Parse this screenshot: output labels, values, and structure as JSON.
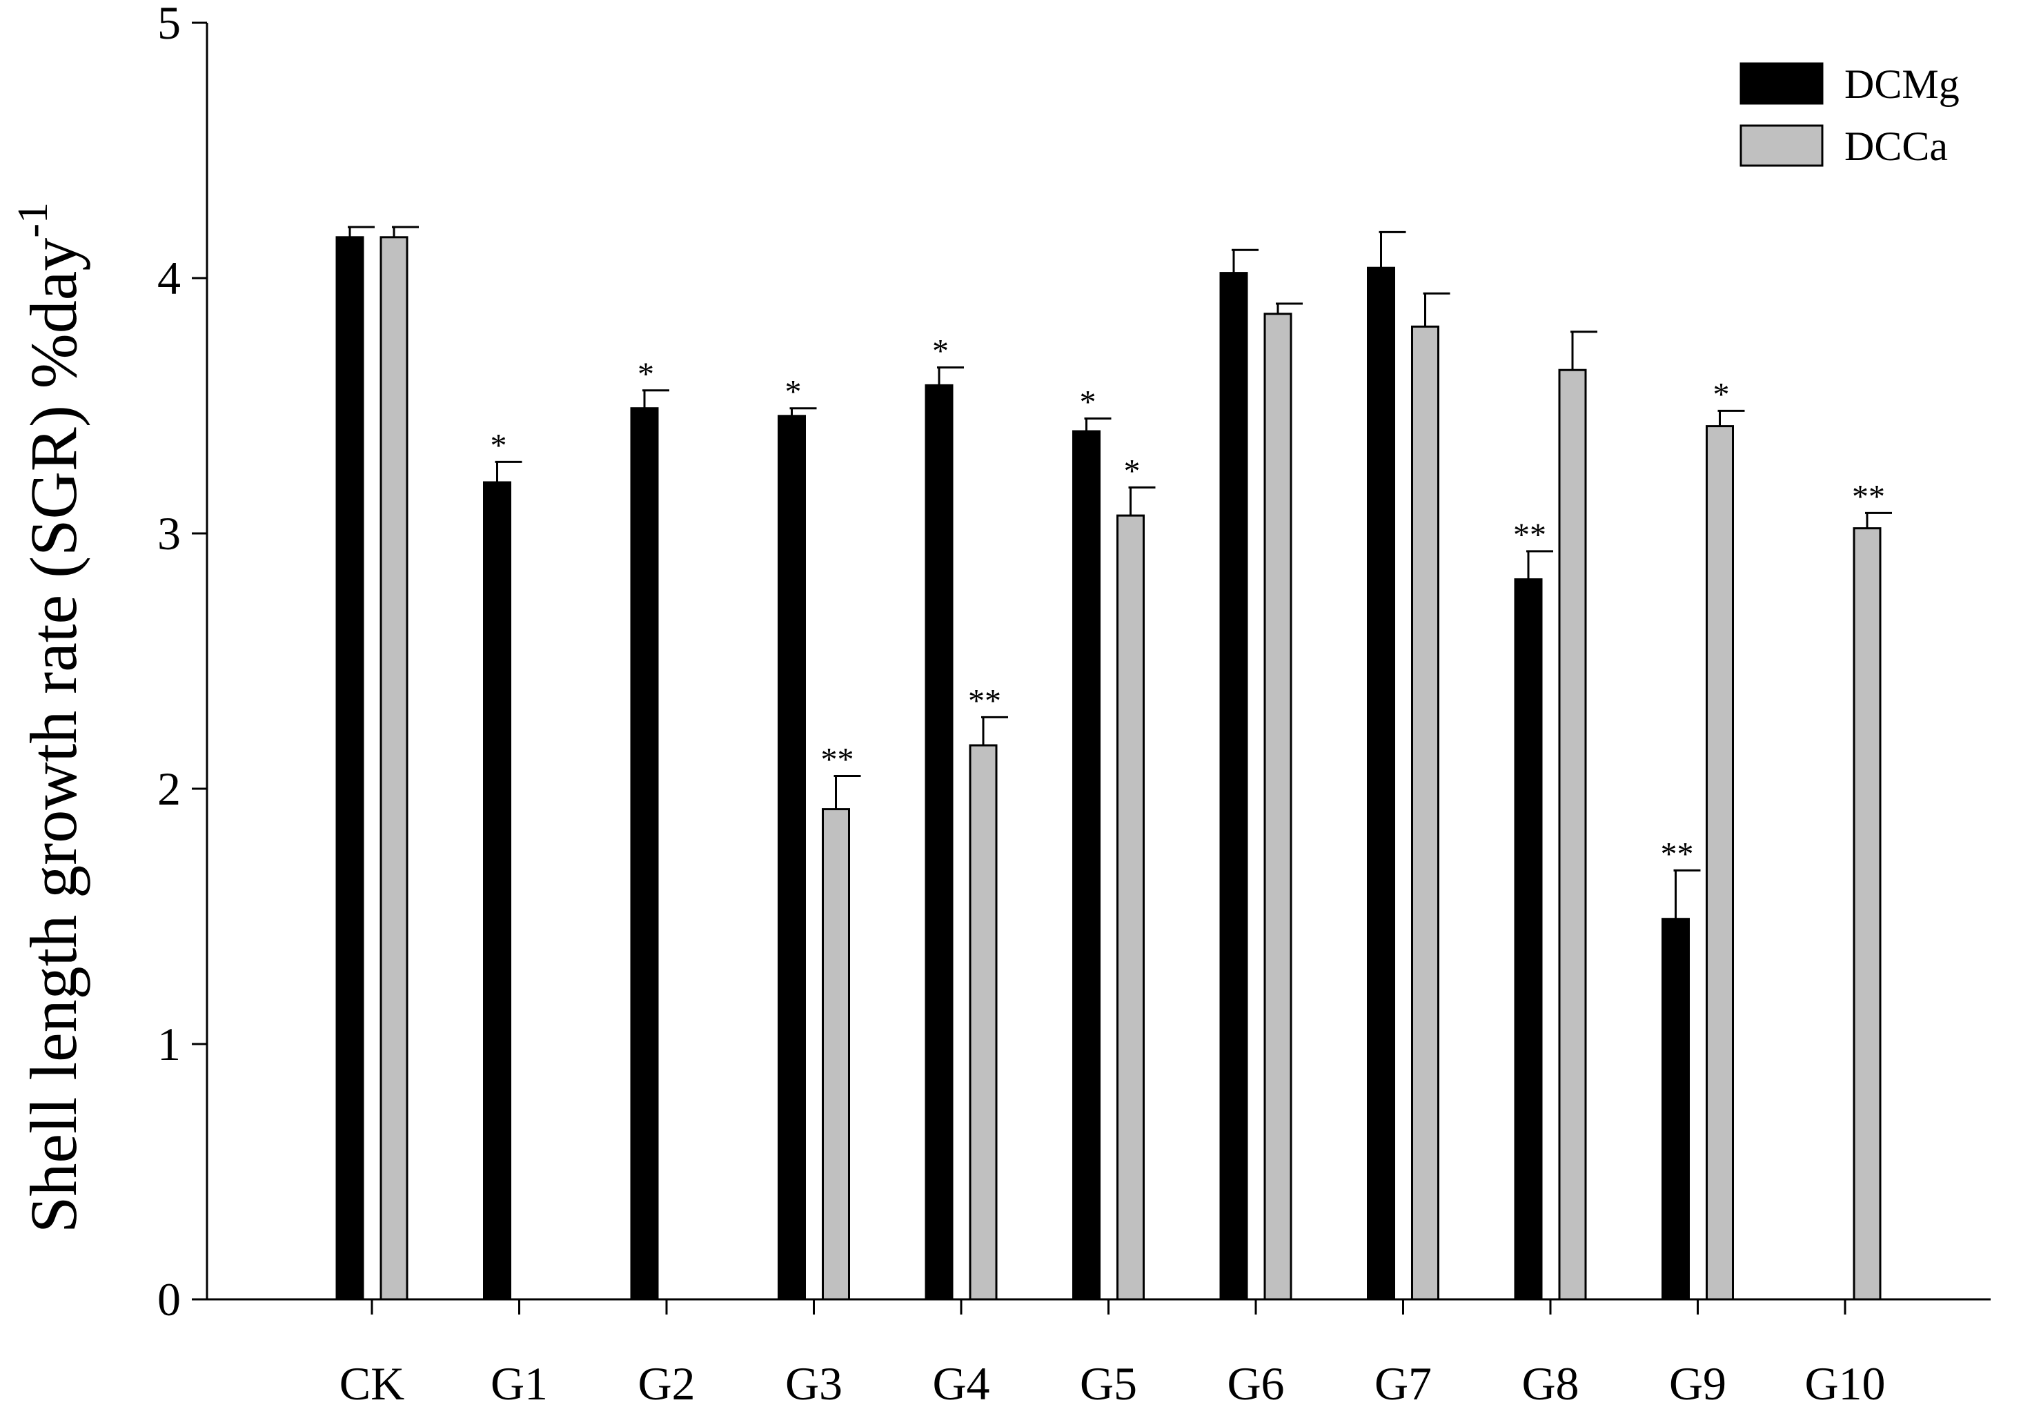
{
  "chart_data": {
    "type": "bar",
    "title": "",
    "xlabel": "",
    "ylabel_main": "Shell length growth rate (SGR) %day",
    "ylabel_sup": "-1",
    "ylim": [
      0,
      5
    ],
    "yticks": [
      0,
      1,
      2,
      3,
      4,
      5
    ],
    "ytick_labels": [
      "0",
      "1",
      "2",
      "3",
      "4",
      "5"
    ],
    "categories": [
      "CK",
      "G1",
      "G2",
      "G3",
      "G4",
      "G5",
      "G6",
      "G7",
      "G8",
      "G9",
      "G10"
    ],
    "legend_position": "top-right",
    "grid": false,
    "series": [
      {
        "name": "DCMg",
        "color": "#000000",
        "values": [
          4.16,
          3.2,
          3.49,
          3.46,
          3.58,
          3.4,
          4.02,
          4.04,
          2.82,
          1.49,
          null
        ],
        "errors": [
          0.04,
          0.08,
          0.07,
          0.03,
          0.07,
          0.05,
          0.09,
          0.14,
          0.11,
          0.19,
          null
        ],
        "significance": [
          "",
          "*",
          "*",
          "*",
          "*",
          "*",
          "",
          "",
          "**",
          "**",
          ""
        ]
      },
      {
        "name": "DCCa",
        "color": "#c0c0c0",
        "values": [
          4.16,
          null,
          null,
          1.92,
          2.17,
          3.07,
          3.86,
          3.81,
          3.64,
          3.42,
          3.02
        ],
        "errors": [
          0.04,
          null,
          null,
          0.13,
          0.11,
          0.11,
          0.04,
          0.13,
          0.15,
          0.06,
          0.06
        ],
        "significance": [
          "",
          "",
          "",
          "**",
          "**",
          "*",
          "",
          "",
          "",
          "*",
          "**"
        ]
      }
    ]
  }
}
